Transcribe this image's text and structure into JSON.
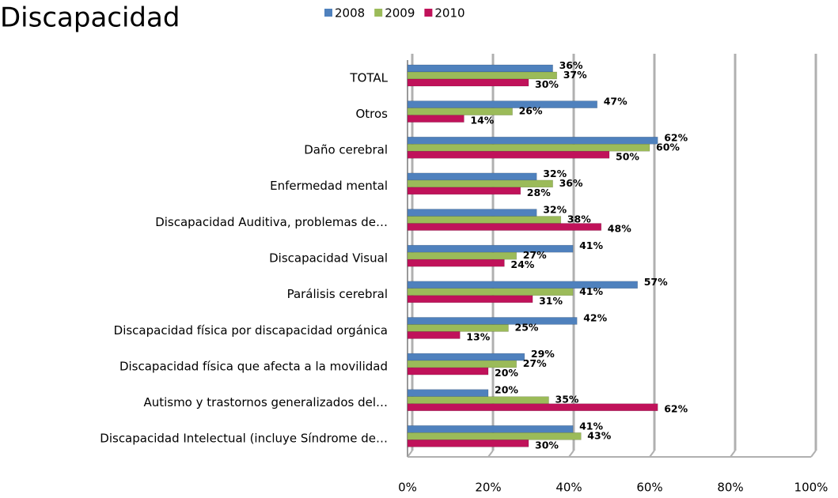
{
  "chart_data": {
    "type": "bar",
    "orientation": "horizontal",
    "title": "Discapacidad",
    "categories": [
      "TOTAL",
      "Otros",
      "Daño cerebral",
      "Enfermedad mental",
      "Discapacidad Auditiva, problemas de…",
      "Discapacidad Visual",
      "Parálisis cerebral",
      "Discapacidad física por discapacidad orgánica",
      "Discapacidad física que afecta a la movilidad",
      "Autismo y trastornos generalizados del…",
      "Discapacidad Intelectual (incluye Síndrome de…"
    ],
    "series": [
      {
        "name": "2008",
        "color": "#4f81bd",
        "values": [
          36,
          47,
          62,
          32,
          32,
          41,
          57,
          42,
          29,
          20,
          41
        ],
        "value_labels": [
          "36%",
          "47%",
          "62%",
          "32%",
          "32%",
          "41%",
          "57%",
          "42%",
          "29%",
          "20%",
          "41%"
        ]
      },
      {
        "name": "2009",
        "color": "#9bbb59",
        "values": [
          37,
          26,
          60,
          36,
          38,
          27,
          41,
          25,
          27,
          35,
          43
        ],
        "value_labels": [
          "37%",
          "26%",
          "60%",
          "36%",
          "38%",
          "27%",
          "41%",
          "25%",
          "27%",
          "35%",
          "43%"
        ]
      },
      {
        "name": "2010",
        "color": "#c0125a",
        "values": [
          30,
          14,
          50,
          28,
          48,
          24,
          31,
          13,
          20,
          62,
          30
        ],
        "value_labels": [
          "30%",
          "14%",
          "50%",
          "28%",
          "48%",
          "24%",
          "31%",
          "13%",
          "20%",
          "62%",
          "30%"
        ]
      }
    ],
    "xlim": [
      0,
      100
    ],
    "xticks": [
      {
        "value": 0,
        "label": "0%"
      },
      {
        "value": 20,
        "label": "20%"
      },
      {
        "value": 40,
        "label": "40%"
      },
      {
        "value": 60,
        "label": "60%"
      },
      {
        "value": 80,
        "label": "80%"
      },
      {
        "value": 100,
        "label": "100%"
      }
    ],
    "grid": true,
    "legend": "top"
  }
}
